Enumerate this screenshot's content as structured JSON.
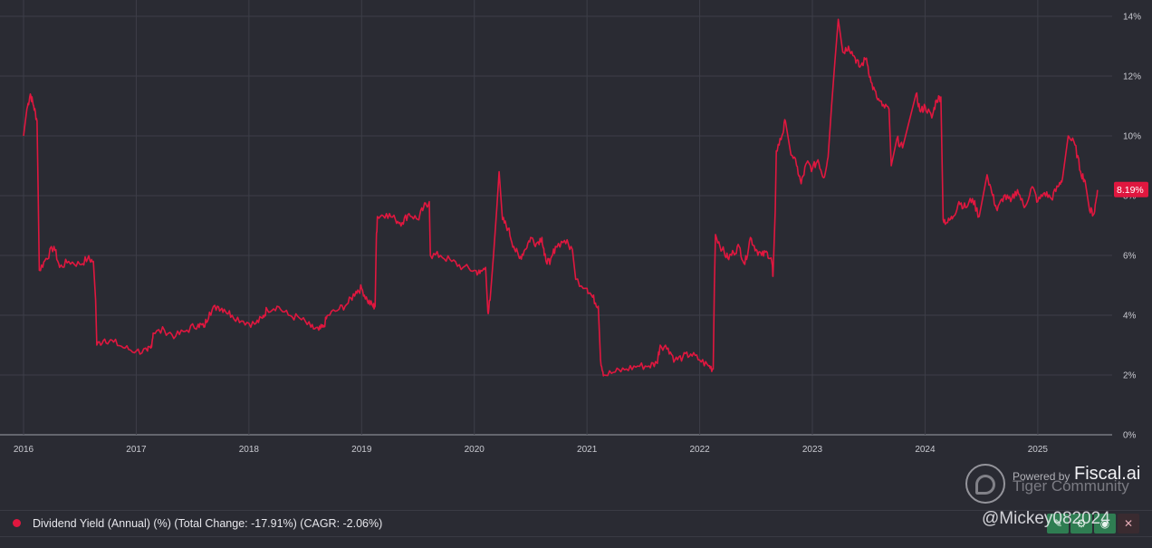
{
  "chart_data": {
    "type": "line",
    "x_axis": {
      "labels": [
        "2016",
        "2017",
        "2018",
        "2019",
        "2020",
        "2021",
        "2022",
        "2023",
        "2024",
        "2025"
      ],
      "range": [
        2016.0,
        2025.66
      ]
    },
    "y_axis": {
      "ticks": [
        "0%",
        "2%",
        "4%",
        "6%",
        "8%",
        "10%",
        "12%",
        "14%"
      ],
      "range": [
        0,
        14
      ],
      "position": "right",
      "unit": "%"
    },
    "grid": true,
    "legend_position": "bottom-left",
    "series": [
      {
        "name": "Dividend Yield (Annual) (%) (Total Change: -17.91%) (CAGR: -2.06%)",
        "color": "#e0173f",
        "last_value_label": "8.19%",
        "points": [
          [
            2016.0,
            10.0
          ],
          [
            2016.03,
            10.9
          ],
          [
            2016.06,
            11.4
          ],
          [
            2016.09,
            11.0
          ],
          [
            2016.12,
            10.5
          ],
          [
            2016.13,
            8.0
          ],
          [
            2016.14,
            5.5
          ],
          [
            2016.2,
            5.9
          ],
          [
            2016.27,
            6.3
          ],
          [
            2016.32,
            5.6
          ],
          [
            2016.4,
            5.8
          ],
          [
            2016.5,
            5.7
          ],
          [
            2016.57,
            5.9
          ],
          [
            2016.62,
            5.8
          ],
          [
            2016.64,
            4.5
          ],
          [
            2016.65,
            3.0
          ],
          [
            2016.72,
            3.2
          ],
          [
            2016.8,
            3.1
          ],
          [
            2016.9,
            2.9
          ],
          [
            2017.0,
            2.8
          ],
          [
            2017.1,
            2.8
          ],
          [
            2017.13,
            2.9
          ],
          [
            2017.15,
            3.4
          ],
          [
            2017.25,
            3.5
          ],
          [
            2017.35,
            3.3
          ],
          [
            2017.45,
            3.5
          ],
          [
            2017.55,
            3.7
          ],
          [
            2017.6,
            3.6
          ],
          [
            2017.65,
            4.1
          ],
          [
            2017.72,
            4.3
          ],
          [
            2017.78,
            4.2
          ],
          [
            2017.85,
            4.0
          ],
          [
            2017.95,
            3.8
          ],
          [
            2018.05,
            3.7
          ],
          [
            2018.12,
            3.9
          ],
          [
            2018.16,
            4.2
          ],
          [
            2018.25,
            4.3
          ],
          [
            2018.35,
            4.0
          ],
          [
            2018.45,
            3.9
          ],
          [
            2018.55,
            3.6
          ],
          [
            2018.62,
            3.5
          ],
          [
            2018.66,
            3.6
          ],
          [
            2018.7,
            4.0
          ],
          [
            2018.8,
            4.2
          ],
          [
            2018.88,
            4.4
          ],
          [
            2018.95,
            4.8
          ],
          [
            2019.0,
            4.9
          ],
          [
            2019.05,
            4.5
          ],
          [
            2019.1,
            4.3
          ],
          [
            2019.12,
            4.3
          ],
          [
            2019.13,
            6.5
          ],
          [
            2019.14,
            7.3
          ],
          [
            2019.22,
            7.4
          ],
          [
            2019.3,
            7.2
          ],
          [
            2019.36,
            7.1
          ],
          [
            2019.42,
            7.4
          ],
          [
            2019.5,
            7.2
          ],
          [
            2019.55,
            7.6
          ],
          [
            2019.6,
            7.8
          ],
          [
            2019.61,
            6.0
          ],
          [
            2019.7,
            6.0
          ],
          [
            2019.8,
            5.8
          ],
          [
            2019.9,
            5.6
          ],
          [
            2020.0,
            5.5
          ],
          [
            2020.05,
            5.4
          ],
          [
            2020.1,
            5.6
          ],
          [
            2020.12,
            4.1
          ],
          [
            2020.14,
            4.5
          ],
          [
            2020.17,
            6.0
          ],
          [
            2020.2,
            7.6
          ],
          [
            2020.22,
            8.8
          ],
          [
            2020.25,
            7.2
          ],
          [
            2020.3,
            6.9
          ],
          [
            2020.35,
            6.3
          ],
          [
            2020.4,
            5.9
          ],
          [
            2020.45,
            6.2
          ],
          [
            2020.5,
            6.6
          ],
          [
            2020.55,
            6.4
          ],
          [
            2020.6,
            6.6
          ],
          [
            2020.62,
            6.0
          ],
          [
            2020.67,
            5.7
          ],
          [
            2020.72,
            6.3
          ],
          [
            2020.8,
            6.5
          ],
          [
            2020.87,
            6.2
          ],
          [
            2020.9,
            5.2
          ],
          [
            2021.0,
            4.9
          ],
          [
            2021.05,
            4.6
          ],
          [
            2021.1,
            4.3
          ],
          [
            2021.12,
            2.5
          ],
          [
            2021.15,
            2.0
          ],
          [
            2021.25,
            2.1
          ],
          [
            2021.35,
            2.2
          ],
          [
            2021.45,
            2.3
          ],
          [
            2021.55,
            2.3
          ],
          [
            2021.62,
            2.4
          ],
          [
            2021.65,
            3.0
          ],
          [
            2021.72,
            2.9
          ],
          [
            2021.78,
            2.5
          ],
          [
            2021.85,
            2.6
          ],
          [
            2021.92,
            2.7
          ],
          [
            2022.0,
            2.5
          ],
          [
            2022.08,
            2.3
          ],
          [
            2022.12,
            2.2
          ],
          [
            2022.13,
            5.0
          ],
          [
            2022.14,
            6.7
          ],
          [
            2022.2,
            6.2
          ],
          [
            2022.25,
            5.9
          ],
          [
            2022.3,
            6.1
          ],
          [
            2022.35,
            6.3
          ],
          [
            2022.4,
            5.7
          ],
          [
            2022.45,
            6.6
          ],
          [
            2022.5,
            6.2
          ],
          [
            2022.55,
            6.0
          ],
          [
            2022.6,
            6.1
          ],
          [
            2022.64,
            5.8
          ],
          [
            2022.65,
            5.3
          ],
          [
            2022.67,
            7.5
          ],
          [
            2022.68,
            9.5
          ],
          [
            2022.73,
            10.0
          ],
          [
            2022.76,
            10.5
          ],
          [
            2022.8,
            9.6
          ],
          [
            2022.86,
            9.0
          ],
          [
            2022.9,
            8.4
          ],
          [
            2022.95,
            9.1
          ],
          [
            2023.0,
            8.9
          ],
          [
            2023.05,
            9.2
          ],
          [
            2023.1,
            8.6
          ],
          [
            2023.14,
            9.3
          ],
          [
            2023.17,
            11.0
          ],
          [
            2023.2,
            12.5
          ],
          [
            2023.23,
            13.9
          ],
          [
            2023.27,
            12.8
          ],
          [
            2023.32,
            13.0
          ],
          [
            2023.38,
            12.6
          ],
          [
            2023.42,
            12.3
          ],
          [
            2023.48,
            12.6
          ],
          [
            2023.52,
            11.8
          ],
          [
            2023.57,
            11.3
          ],
          [
            2023.62,
            11.0
          ],
          [
            2023.68,
            10.9
          ],
          [
            2023.7,
            9.0
          ],
          [
            2023.75,
            9.9
          ],
          [
            2023.8,
            9.6
          ],
          [
            2023.86,
            10.5
          ],
          [
            2023.92,
            11.4
          ],
          [
            2023.96,
            10.8
          ],
          [
            2024.0,
            11.0
          ],
          [
            2024.06,
            10.6
          ],
          [
            2024.1,
            11.2
          ],
          [
            2024.14,
            11.3
          ],
          [
            2024.16,
            7.2
          ],
          [
            2024.2,
            7.1
          ],
          [
            2024.25,
            7.3
          ],
          [
            2024.3,
            7.8
          ],
          [
            2024.36,
            7.6
          ],
          [
            2024.42,
            7.9
          ],
          [
            2024.48,
            7.3
          ],
          [
            2024.55,
            8.7
          ],
          [
            2024.6,
            8.0
          ],
          [
            2024.64,
            7.5
          ],
          [
            2024.7,
            8.0
          ],
          [
            2024.76,
            7.8
          ],
          [
            2024.82,
            8.2
          ],
          [
            2024.88,
            7.6
          ],
          [
            2024.95,
            8.3
          ],
          [
            2025.0,
            7.8
          ],
          [
            2025.06,
            8.1
          ],
          [
            2025.12,
            7.9
          ],
          [
            2025.18,
            8.3
          ],
          [
            2025.22,
            8.6
          ],
          [
            2025.27,
            10.0
          ],
          [
            2025.33,
            9.7
          ],
          [
            2025.38,
            8.8
          ],
          [
            2025.42,
            8.5
          ],
          [
            2025.46,
            7.5
          ],
          [
            2025.5,
            7.4
          ],
          [
            2025.53,
            8.19
          ]
        ]
      }
    ]
  },
  "watermark": {
    "powered_by": "Powered by",
    "brand": "Fiscal.ai",
    "community": "Tiger Community",
    "handle": "@Mickey082024"
  }
}
